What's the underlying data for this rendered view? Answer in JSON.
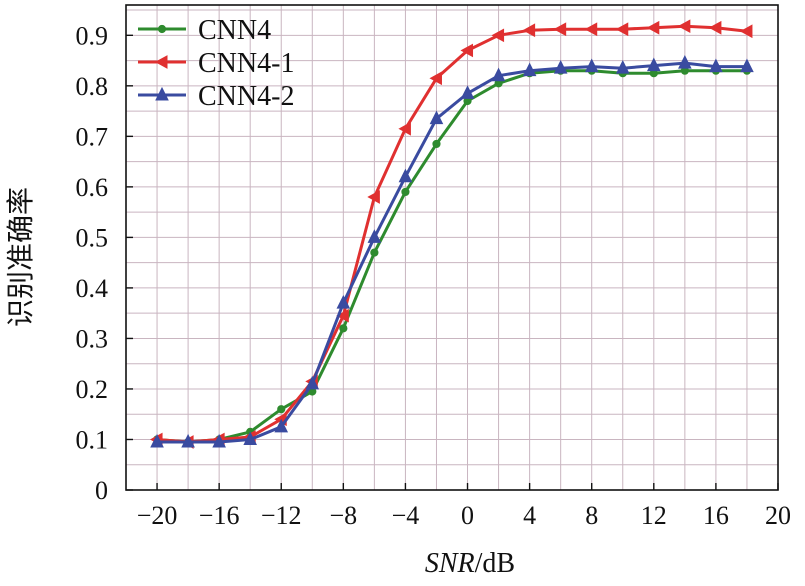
{
  "chart_data": {
    "type": "line",
    "title": "",
    "xlabel": "SNR/dB",
    "ylabel": "识别准确率",
    "xlim": [
      -22,
      20
    ],
    "ylim": [
      0,
      0.96
    ],
    "xticks": [
      -20,
      -16,
      -12,
      -8,
      -4,
      0,
      4,
      8,
      12,
      16,
      20
    ],
    "xtick_labels": [
      "−20",
      "−16",
      "−12",
      "−8",
      "−4",
      "0",
      "4",
      "8",
      "12",
      "16",
      "20"
    ],
    "yticks": [
      0,
      0.1,
      0.2,
      0.3,
      0.4,
      0.5,
      0.6,
      0.7,
      0.8,
      0.9
    ],
    "ytick_labels": [
      "0",
      "0.1",
      "0.2",
      "0.3",
      "0.4",
      "0.5",
      "0.6",
      "0.7",
      "0.8",
      "0.9"
    ],
    "grid": true,
    "legend_position": "top-left",
    "x": [
      -20,
      -18,
      -16,
      -14,
      -12,
      -10,
      -8,
      -6,
      -4,
      -2,
      0,
      2,
      4,
      6,
      8,
      10,
      12,
      14,
      16,
      18
    ],
    "series": [
      {
        "name": "CNN4",
        "color": "#2e8b2e",
        "marker": "circle",
        "values": [
          0.1,
          0.095,
          0.1,
          0.115,
          0.16,
          0.195,
          0.32,
          0.47,
          0.59,
          0.685,
          0.77,
          0.805,
          0.825,
          0.83,
          0.83,
          0.825,
          0.825,
          0.83,
          0.83,
          0.83
        ]
      },
      {
        "name": "CNN4-1",
        "color": "#e03030",
        "marker": "triangle-left",
        "values": [
          0.1,
          0.095,
          0.1,
          0.105,
          0.14,
          0.215,
          0.345,
          0.58,
          0.715,
          0.815,
          0.87,
          0.9,
          0.91,
          0.912,
          0.912,
          0.912,
          0.915,
          0.918,
          0.915,
          0.908
        ]
      },
      {
        "name": "CNN4-2",
        "color": "#3a4ba0",
        "marker": "triangle-up",
        "values": [
          0.095,
          0.095,
          0.095,
          0.1,
          0.125,
          0.21,
          0.37,
          0.5,
          0.62,
          0.735,
          0.785,
          0.82,
          0.83,
          0.835,
          0.838,
          0.835,
          0.84,
          0.845,
          0.838,
          0.838
        ]
      }
    ]
  }
}
